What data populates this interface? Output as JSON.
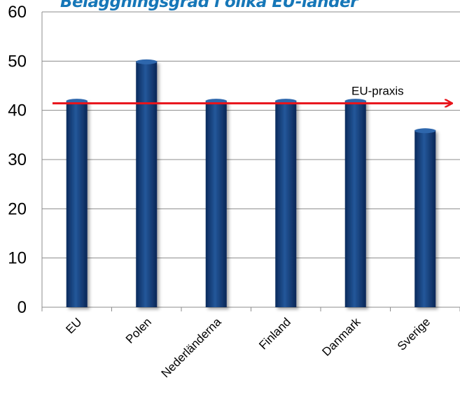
{
  "chart_data": {
    "type": "bar",
    "title": "Beläggningsgrad i olika EU-länder",
    "categories": [
      "EU",
      "Polen",
      "Nederländerna",
      "Finland",
      "Danmark",
      "Sverige"
    ],
    "values": [
      42,
      50,
      42,
      42,
      42,
      36
    ],
    "ylim": [
      0,
      60
    ],
    "yticks": [
      0,
      10,
      20,
      30,
      40,
      50,
      60
    ],
    "grid": true,
    "reference_line": {
      "label": "EU-praxis",
      "value": 42
    },
    "colors": {
      "bar": "#1f4e8c",
      "bar_dark": "#0d2f63",
      "reference_line": "#e8141b",
      "title": "#1677b8",
      "grid": "#8c8c8c"
    }
  }
}
